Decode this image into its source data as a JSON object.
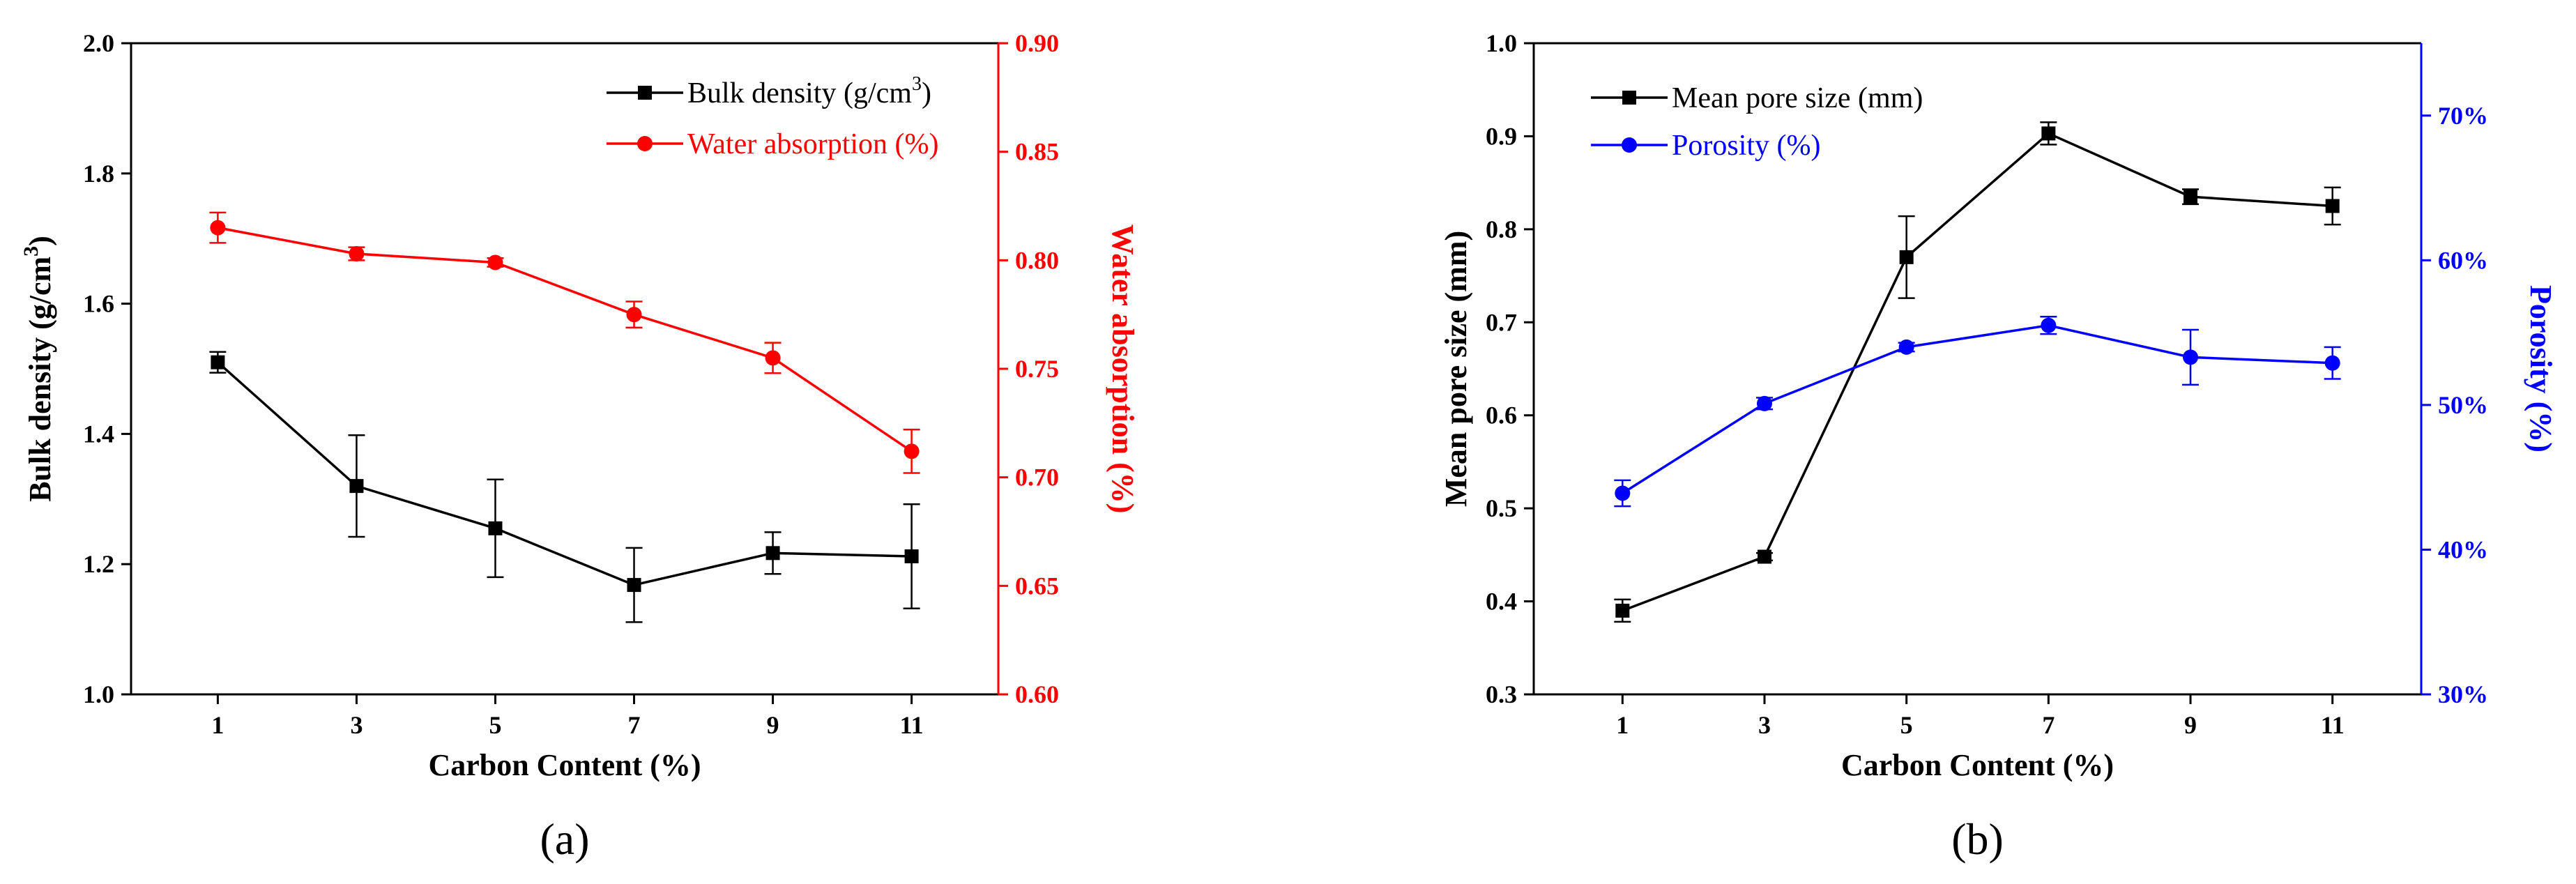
{
  "colors": {
    "black": "#000000",
    "red": "#ff0000",
    "blue": "#0000ff"
  },
  "chart_data": [
    {
      "id": "a",
      "type": "line",
      "panel_label": "(a)",
      "xlabel": "Carbon Content (%)",
      "categories": [
        "1",
        "3",
        "5",
        "7",
        "9",
        "11"
      ],
      "x": [
        1,
        3,
        5,
        7,
        9,
        11
      ],
      "xlim": [
        -0.25,
        12.25
      ],
      "y_left": {
        "label_main": "Bulk density (g/cm",
        "label_sup": "3",
        "label_close": ")",
        "lim": [
          1.0,
          2.0
        ],
        "ticks": [
          1.0,
          1.2,
          1.4,
          1.6,
          1.8,
          2.0
        ],
        "tick_labels": [
          "1.0",
          "1.2",
          "1.4",
          "1.6",
          "1.8",
          "2.0"
        ],
        "color": "#000000"
      },
      "y_right": {
        "label": "Water absorption (%)",
        "lim": [
          0.6,
          0.9
        ],
        "ticks": [
          0.6,
          0.65,
          0.7,
          0.75,
          0.8,
          0.85,
          0.9
        ],
        "tick_labels": [
          "0.60",
          "0.65",
          "0.70",
          "0.75",
          "0.80",
          "0.85",
          "0.90"
        ],
        "color": "#ff0000"
      },
      "legend_position": "top-right",
      "series": [
        {
          "name": "Bulk density (g/cm",
          "name_sup": "3",
          "name_close": ")",
          "axis": "left",
          "marker": "square",
          "color": "#000000",
          "values": [
            1.51,
            1.32,
            1.255,
            1.168,
            1.217,
            1.212
          ],
          "errors": [
            0.016,
            0.078,
            0.075,
            0.057,
            0.032,
            0.08
          ]
        },
        {
          "name": "Water absorption (%)",
          "axis": "right",
          "marker": "circle",
          "color": "#ff0000",
          "values": [
            0.815,
            0.803,
            0.799,
            0.775,
            0.755,
            0.712
          ],
          "errors": [
            0.007,
            0.003,
            0.002,
            0.006,
            0.007,
            0.01
          ]
        }
      ]
    },
    {
      "id": "b",
      "type": "line",
      "panel_label": "(b)",
      "xlabel": "Carbon Content (%)",
      "categories": [
        "1",
        "3",
        "5",
        "7",
        "9",
        "11"
      ],
      "x": [
        1,
        3,
        5,
        7,
        9,
        11
      ],
      "xlim": [
        -0.25,
        12.25
      ],
      "y_left": {
        "label": "Mean pore size (mm)",
        "lim": [
          0.3,
          1.0
        ],
        "ticks": [
          0.3,
          0.4,
          0.5,
          0.6,
          0.7,
          0.8,
          0.9,
          1.0
        ],
        "tick_labels": [
          "0.3",
          "0.4",
          "0.5",
          "0.6",
          "0.7",
          "0.8",
          "0.9",
          "1.0"
        ],
        "color": "#000000"
      },
      "y_right": {
        "label": "Porosity (%)",
        "lim": [
          30,
          75
        ],
        "ticks": [
          30,
          40,
          50,
          60,
          70
        ],
        "tick_labels": [
          "30%",
          "40%",
          "50%",
          "60%",
          "70%"
        ],
        "color": "#0000ff"
      },
      "legend_position": "top-left",
      "series": [
        {
          "name": "Mean pore size (mm)",
          "axis": "left",
          "marker": "square",
          "color": "#000000",
          "values": [
            0.39,
            0.448,
            0.77,
            0.903,
            0.835,
            0.825
          ],
          "errors": [
            0.012,
            0.004,
            0.044,
            0.012,
            0.008,
            0.02
          ]
        },
        {
          "name": "Porosity (%)",
          "axis": "right",
          "marker": "circle",
          "color": "#0000ff",
          "values": [
            43.9,
            50.1,
            54.0,
            55.5,
            53.3,
            52.9
          ],
          "errors": [
            0.9,
            0.4,
            0.3,
            0.6,
            1.9,
            1.1
          ]
        }
      ]
    }
  ]
}
